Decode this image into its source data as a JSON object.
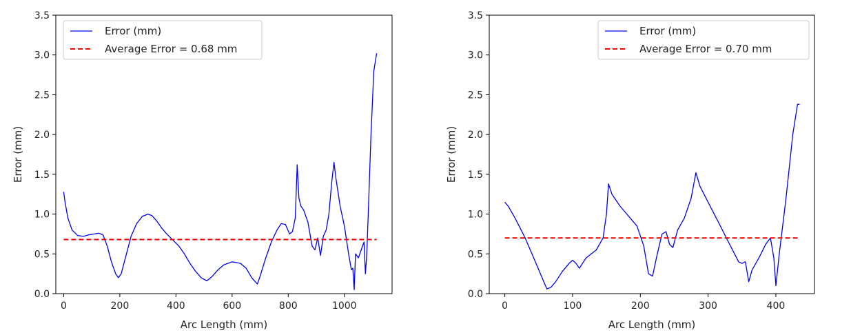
{
  "chart_data": [
    {
      "type": "line",
      "xlabel": "Arc Length (mm)",
      "ylabel": "Error (mm)",
      "xlim": [
        -28,
        1170
      ],
      "ylim": [
        0,
        3.5
      ],
      "xticks": [
        0,
        200,
        400,
        600,
        800,
        1000
      ],
      "yticks": [
        0.0,
        0.5,
        1.0,
        1.5,
        2.0,
        2.5,
        3.0,
        3.5
      ],
      "ytick_labels": [
        "0.0",
        "0.5",
        "1.0",
        "1.5",
        "2.0",
        "2.5",
        "3.0",
        "3.5"
      ],
      "legend_position": "top-left",
      "series": [
        {
          "name": "Error (mm)",
          "color": "#0000ee",
          "style": "solid",
          "x": [
            0,
            5,
            15,
            30,
            50,
            70,
            90,
            110,
            125,
            140,
            155,
            170,
            185,
            195,
            205,
            220,
            240,
            260,
            280,
            300,
            315,
            330,
            350,
            370,
            390,
            410,
            430,
            450,
            470,
            490,
            510,
            530,
            550,
            570,
            600,
            630,
            650,
            670,
            690,
            700,
            720,
            740,
            760,
            775,
            790,
            805,
            815,
            825,
            832,
            838,
            845,
            855,
            870,
            885,
            895,
            905,
            915,
            925,
            935,
            945,
            955,
            963,
            970,
            985,
            1000,
            1015,
            1025,
            1030,
            1035,
            1040,
            1050,
            1060,
            1070,
            1075,
            1080,
            1085,
            1095,
            1105,
            1115
          ],
          "y": [
            1.28,
            1.15,
            0.95,
            0.8,
            0.73,
            0.72,
            0.74,
            0.75,
            0.76,
            0.74,
            0.6,
            0.4,
            0.25,
            0.2,
            0.25,
            0.45,
            0.72,
            0.88,
            0.97,
            1.0,
            0.98,
            0.92,
            0.82,
            0.74,
            0.67,
            0.6,
            0.5,
            0.38,
            0.28,
            0.2,
            0.16,
            0.22,
            0.3,
            0.36,
            0.4,
            0.38,
            0.32,
            0.2,
            0.12,
            0.22,
            0.45,
            0.65,
            0.8,
            0.88,
            0.87,
            0.75,
            0.78,
            0.95,
            1.62,
            1.2,
            1.1,
            1.05,
            0.9,
            0.6,
            0.55,
            0.7,
            0.48,
            0.72,
            0.8,
            1.0,
            1.4,
            1.65,
            1.45,
            1.1,
            0.85,
            0.5,
            0.3,
            0.32,
            0.05,
            0.5,
            0.45,
            0.55,
            0.65,
            0.25,
            0.5,
            1.0,
            2.0,
            2.8,
            3.02
          ]
        },
        {
          "name": "Average Error = 0.68 mm",
          "color": "#ee0000",
          "style": "dashed",
          "x": [
            0,
            1115
          ],
          "y": [
            0.68,
            0.68
          ]
        }
      ]
    },
    {
      "type": "line",
      "xlabel": "Arc Length (mm)",
      "ylabel": "Error (mm)",
      "xlim": [
        -23,
        457
      ],
      "ylim": [
        0,
        3.5
      ],
      "xticks": [
        0,
        100,
        200,
        300,
        400
      ],
      "yticks": [
        0.0,
        0.5,
        1.0,
        1.5,
        2.0,
        2.5,
        3.0,
        3.5
      ],
      "ytick_labels": [
        "0.0",
        "0.5",
        "1.0",
        "1.5",
        "2.0",
        "2.5",
        "3.0",
        "3.5"
      ],
      "legend_position": "top-right",
      "series": [
        {
          "name": "Error (mm)",
          "color": "#0000ee",
          "style": "solid",
          "x": [
            0,
            5,
            15,
            30,
            45,
            55,
            62,
            68,
            75,
            85,
            95,
            100,
            105,
            110,
            120,
            135,
            145,
            150,
            153,
            158,
            170,
            185,
            195,
            205,
            212,
            218,
            225,
            232,
            238,
            243,
            248,
            255,
            265,
            275,
            282,
            288,
            300,
            315,
            330,
            345,
            350,
            355,
            360,
            365,
            375,
            385,
            392,
            397,
            400,
            405,
            415,
            425,
            432,
            435
          ],
          "y": [
            1.15,
            1.1,
            0.95,
            0.7,
            0.4,
            0.2,
            0.06,
            0.08,
            0.15,
            0.28,
            0.38,
            0.42,
            0.38,
            0.32,
            0.45,
            0.55,
            0.7,
            1.0,
            1.38,
            1.25,
            1.1,
            0.95,
            0.85,
            0.6,
            0.25,
            0.22,
            0.5,
            0.75,
            0.78,
            0.62,
            0.58,
            0.8,
            0.95,
            1.2,
            1.52,
            1.35,
            1.15,
            0.9,
            0.65,
            0.4,
            0.38,
            0.4,
            0.15,
            0.3,
            0.45,
            0.62,
            0.7,
            0.45,
            0.1,
            0.5,
            1.2,
            2.0,
            2.38,
            2.38
          ]
        },
        {
          "name": "Average Error = 0.70 mm",
          "color": "#ee0000",
          "style": "dashed",
          "x": [
            0,
            435
          ],
          "y": [
            0.7,
            0.7
          ]
        }
      ]
    }
  ]
}
